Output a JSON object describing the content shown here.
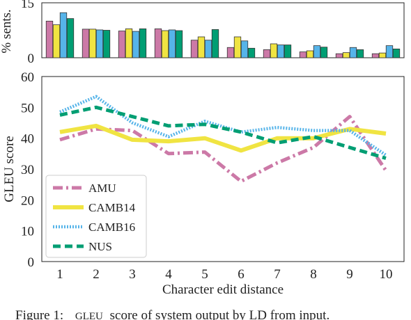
{
  "chart_data": [
    {
      "type": "bar",
      "ylabel": "% sents.",
      "ylim": [
        0,
        15
      ],
      "yticks": [
        "0",
        "15"
      ],
      "categories": [
        "1",
        "2",
        "3",
        "4",
        "5",
        "6",
        "7",
        "8",
        "9",
        "10"
      ],
      "series": [
        {
          "name": "AMU",
          "color": "#cc79a7",
          "values": [
            10.0,
            7.8,
            7.3,
            7.9,
            4.8,
            2.8,
            2.2,
            1.6,
            1.1,
            1.1
          ]
        },
        {
          "name": "CAMB14",
          "color": "#f0e442",
          "values": [
            9.0,
            7.8,
            7.9,
            7.4,
            5.7,
            5.7,
            3.8,
            1.9,
            1.4,
            1.3
          ]
        },
        {
          "name": "CAMB16",
          "color": "#56b4e9",
          "values": [
            12.3,
            7.6,
            7.2,
            7.6,
            4.8,
            4.6,
            3.5,
            3.3,
            2.8,
            3.3
          ]
        },
        {
          "name": "NUS",
          "color": "#009e73",
          "values": [
            10.7,
            7.5,
            7.9,
            7.4,
            7.7,
            2.6,
            3.5,
            2.9,
            2.2,
            2.4
          ]
        }
      ]
    },
    {
      "type": "line",
      "xlabel": "Character edit distance",
      "ylabel": "GLEU score",
      "ylim": [
        0,
        60
      ],
      "yticks": [
        "0",
        "10",
        "20",
        "30",
        "40",
        "50",
        "60"
      ],
      "x": [
        "1",
        "2",
        "3",
        "4",
        "5",
        "6",
        "7",
        "8",
        "9",
        "10"
      ],
      "legend_position": "lower-left",
      "series": [
        {
          "name": "AMU",
          "color": "#cc79a7",
          "style": "dash-dot",
          "values": [
            39.5,
            43.0,
            42.5,
            35.0,
            35.5,
            26.0,
            32.0,
            37.0,
            47.0,
            29.5
          ]
        },
        {
          "name": "CAMB14",
          "color": "#f0e442",
          "style": "solid",
          "values": [
            42.0,
            44.0,
            39.5,
            39.0,
            40.0,
            36.0,
            40.0,
            40.0,
            43.0,
            41.5
          ]
        },
        {
          "name": "CAMB16",
          "color": "#56b4e9",
          "style": "dotted",
          "values": [
            48.5,
            53.5,
            45.0,
            40.5,
            45.5,
            42.0,
            43.5,
            42.5,
            42.5,
            34.5
          ]
        },
        {
          "name": "NUS",
          "color": "#009e73",
          "style": "dashed",
          "values": [
            47.5,
            50.0,
            47.0,
            44.0,
            44.5,
            42.0,
            38.5,
            40.5,
            37.0,
            33.5
          ]
        }
      ]
    }
  ],
  "caption": {
    "prefix": "Figure 1:",
    "smallcaps": "GLEU",
    "rest": "score of system output by LD from input."
  }
}
